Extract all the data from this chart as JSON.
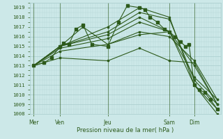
{
  "title": "",
  "xlabel": "Pression niveau de la mer( hPa )",
  "ylim": [
    1008,
    1019.5
  ],
  "yticks": [
    1008,
    1009,
    1010,
    1011,
    1012,
    1013,
    1014,
    1015,
    1016,
    1017,
    1018,
    1019
  ],
  "xlim": [
    0.0,
    1.08
  ],
  "xtick_labels": [
    "Mer",
    "Ven",
    "Jeu",
    "Sam",
    "Dim"
  ],
  "xtick_positions": [
    0.02,
    0.17,
    0.44,
    0.79,
    0.93
  ],
  "background_color": "#cce8e8",
  "grid_color_major": "#a8cccc",
  "grid_color_minor": "#b8d8d8",
  "line_color": "#2d5a1b",
  "text_color": "#2d5a1b",
  "lines": [
    {
      "x": [
        0.02,
        0.17,
        0.44,
        0.62,
        0.79,
        0.93,
        1.06
      ],
      "y": [
        1013.0,
        1015.0,
        1017.0,
        1019.0,
        1018.0,
        1011.0,
        1008.5
      ]
    },
    {
      "x": [
        0.02,
        0.17,
        0.44,
        0.62,
        0.79,
        0.93,
        1.06
      ],
      "y": [
        1013.0,
        1015.0,
        1016.5,
        1018.5,
        1017.8,
        1011.5,
        1009.0
      ]
    },
    {
      "x": [
        0.02,
        0.17,
        0.44,
        0.62,
        0.79,
        0.93,
        1.06
      ],
      "y": [
        1013.0,
        1015.0,
        1016.2,
        1018.0,
        1016.5,
        1011.8,
        1009.5
      ]
    },
    {
      "x": [
        0.02,
        0.17,
        0.44,
        0.62,
        0.79,
        0.93,
        1.06
      ],
      "y": [
        1013.0,
        1014.8,
        1015.8,
        1017.5,
        1016.5,
        1013.0,
        1009.0
      ]
    },
    {
      "x": [
        0.02,
        0.17,
        0.44,
        0.62,
        0.79,
        0.93,
        1.06
      ],
      "y": [
        1013.0,
        1014.5,
        1015.2,
        1016.5,
        1016.0,
        1013.5,
        1009.5
      ]
    },
    {
      "x": [
        0.02,
        0.17,
        0.3,
        0.44,
        0.62,
        0.79,
        0.93,
        1.06
      ],
      "y": [
        1013.0,
        1015.0,
        1017.0,
        1015.2,
        1016.2,
        1016.5,
        1011.0,
        1008.0
      ]
    },
    {
      "x": [
        0.02,
        0.08,
        0.12,
        0.17,
        0.19,
        0.22,
        0.26,
        0.3,
        0.35,
        0.44,
        0.5,
        0.55,
        0.62,
        0.65,
        0.68,
        0.72,
        0.76,
        0.79,
        0.82,
        0.85,
        0.88,
        0.9,
        0.93,
        0.96,
        0.99,
        1.02,
        1.06
      ],
      "y": [
        1013.0,
        1013.3,
        1013.8,
        1015.0,
        1015.3,
        1015.2,
        1016.8,
        1017.2,
        1015.2,
        1015.0,
        1017.5,
        1019.2,
        1019.0,
        1018.8,
        1018.0,
        1017.5,
        1016.8,
        1016.5,
        1016.0,
        1015.5,
        1015.0,
        1015.2,
        1011.0,
        1010.5,
        1010.2,
        1009.5,
        1008.5
      ]
    },
    {
      "x": [
        0.02,
        0.17,
        0.44,
        0.62,
        0.79,
        0.93,
        1.06
      ],
      "y": [
        1013.0,
        1013.8,
        1013.5,
        1014.8,
        1013.5,
        1013.3,
        1009.0
      ]
    }
  ]
}
